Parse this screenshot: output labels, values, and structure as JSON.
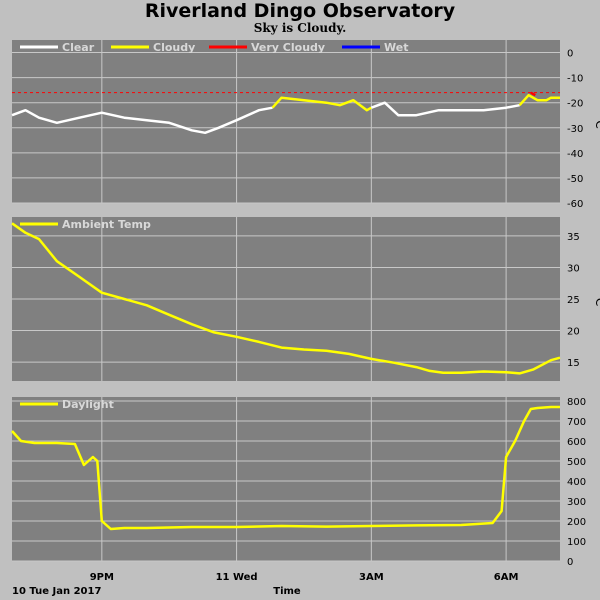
{
  "page": {
    "title": "Riverland Dingo Observatory",
    "subtitle": "Sky is Cloudy."
  },
  "colors": {
    "background": "#c0c0c0",
    "plot": "#808080",
    "grid": "#c8c8c8",
    "clear": "#ffffff",
    "cloudy": "#ffff00",
    "very_cloudy": "#ff0000",
    "wet": "#0000ff"
  },
  "chart_data": [
    {
      "type": "line",
      "panel": "sky",
      "legend": [
        {
          "name": "Clear",
          "color": "#ffffff"
        },
        {
          "name": "Cloudy",
          "color": "#ffff00"
        },
        {
          "name": "Very Cloudy",
          "color": "#ff0000"
        },
        {
          "name": "Wet",
          "color": "#0000ff"
        }
      ],
      "ylabel": "°C",
      "ylim": [
        -60,
        5
      ],
      "yticks": [
        0,
        -10,
        -20,
        -30,
        -40,
        -50,
        -60
      ],
      "threshold": -16,
      "series": [
        {
          "name": "Clear",
          "color": "#ffffff",
          "points": [
            [
              19,
              -25
            ],
            [
              19.3,
              -23
            ],
            [
              19.6,
              -26
            ],
            [
              20,
              -28
            ],
            [
              20.5,
              -26
            ],
            [
              21,
              -24
            ],
            [
              21.5,
              -26
            ],
            [
              22,
              -27
            ],
            [
              22.5,
              -28
            ],
            [
              23,
              -31
            ],
            [
              23.3,
              -32
            ],
            [
              23.6,
              -30
            ],
            [
              24,
              -27
            ],
            [
              24.5,
              -23
            ],
            [
              24.8,
              -22
            ]
          ]
        },
        {
          "name": "Cloudy",
          "color": "#ffff00",
          "points": [
            [
              24.8,
              -22
            ],
            [
              25.0,
              -18
            ],
            [
              25.5,
              -19
            ],
            [
              26.0,
              -20
            ],
            [
              26.3,
              -21
            ],
            [
              26.6,
              -19
            ],
            [
              26.9,
              -23
            ],
            [
              27.0,
              -22
            ]
          ]
        },
        {
          "name": "Clear",
          "color": "#ffffff",
          "points": [
            [
              27.0,
              -22
            ],
            [
              27.3,
              -20
            ],
            [
              27.6,
              -25
            ],
            [
              28,
              -25
            ],
            [
              28.5,
              -23
            ],
            [
              29,
              -23
            ],
            [
              29.5,
              -23
            ],
            [
              30,
              -22
            ],
            [
              30.3,
              -21
            ]
          ]
        },
        {
          "name": "Cloudy",
          "color": "#ffff00",
          "points": [
            [
              30.3,
              -21
            ],
            [
              30.5,
              -17
            ],
            [
              30.7,
              -19
            ],
            [
              30.9,
              -19
            ],
            [
              31.0,
              -18
            ],
            [
              31.2,
              -18
            ]
          ]
        },
        {
          "name": "Very Cloudy",
          "color": "#ff0000",
          "points": [
            [
              30.55,
              -16
            ],
            [
              30.65,
              -17
            ]
          ]
        }
      ]
    },
    {
      "type": "line",
      "panel": "ambient",
      "legend": [
        {
          "name": "Ambient Temp",
          "color": "#ffff00"
        }
      ],
      "ylabel": "°C",
      "ylim": [
        12,
        38
      ],
      "yticks": [
        35,
        30,
        25,
        20,
        15
      ],
      "series": [
        {
          "name": "Ambient Temp",
          "color": "#ffff00",
          "points": [
            [
              19,
              37
            ],
            [
              19.3,
              35.5
            ],
            [
              19.6,
              34.5
            ],
            [
              20,
              31
            ],
            [
              20.5,
              28.5
            ],
            [
              21,
              26
            ],
            [
              21.5,
              25
            ],
            [
              22,
              24
            ],
            [
              22.5,
              22.5
            ],
            [
              23,
              21
            ],
            [
              23.5,
              19.7
            ],
            [
              24,
              19
            ],
            [
              24.5,
              18.2
            ],
            [
              25,
              17.3
            ],
            [
              25.5,
              17
            ],
            [
              26,
              16.8
            ],
            [
              26.5,
              16.3
            ],
            [
              27,
              15.5
            ],
            [
              27.5,
              14.9
            ],
            [
              28,
              14.2
            ],
            [
              28.3,
              13.6
            ],
            [
              28.6,
              13.3
            ],
            [
              29,
              13.3
            ],
            [
              29.5,
              13.5
            ],
            [
              30,
              13.4
            ],
            [
              30.3,
              13.2
            ],
            [
              30.6,
              13.8
            ],
            [
              31,
              15.3
            ],
            [
              31.2,
              15.7
            ]
          ]
        }
      ]
    },
    {
      "type": "line",
      "panel": "daylight",
      "legend": [
        {
          "name": "Daylight",
          "color": "#ffff00"
        }
      ],
      "ylim": [
        0,
        820
      ],
      "yticks": [
        800,
        700,
        600,
        500,
        400,
        300,
        200,
        100,
        0
      ],
      "xticks": [
        {
          "label": "9PM",
          "x": 21
        },
        {
          "label": "11 Wed",
          "x": 24
        },
        {
          "label": "3AM",
          "x": 27
        },
        {
          "label": "6AM",
          "x": 30
        }
      ],
      "xstart_label": "10 Tue Jan 2017",
      "xlabel": "Time",
      "series": [
        {
          "name": "Daylight",
          "color": "#ffff00",
          "points": [
            [
              19,
              650
            ],
            [
              19.2,
              600
            ],
            [
              19.5,
              590
            ],
            [
              20,
              590
            ],
            [
              20.4,
              585
            ],
            [
              20.6,
              480
            ],
            [
              20.8,
              520
            ],
            [
              20.9,
              500
            ],
            [
              21.0,
              200
            ],
            [
              21.2,
              160
            ],
            [
              21.5,
              165
            ],
            [
              22,
              165
            ],
            [
              23,
              170
            ],
            [
              24,
              170
            ],
            [
              25,
              175
            ],
            [
              26,
              172
            ],
            [
              27,
              175
            ],
            [
              28,
              178
            ],
            [
              29,
              180
            ],
            [
              29.7,
              190
            ],
            [
              29.9,
              250
            ],
            [
              30,
              520
            ],
            [
              30.2,
              600
            ],
            [
              30.4,
              700
            ],
            [
              30.55,
              760
            ],
            [
              30.7,
              765
            ],
            [
              31.0,
              770
            ],
            [
              31.2,
              770
            ]
          ]
        }
      ]
    }
  ]
}
